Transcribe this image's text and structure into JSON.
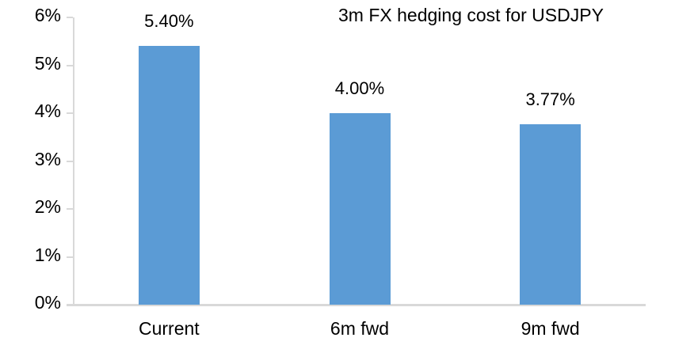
{
  "chart_data": {
    "type": "bar",
    "title": "3m FX hedging cost for USDJPY",
    "categories": [
      "Current",
      "6m fwd",
      "9m fwd"
    ],
    "values": [
      5.4,
      4.0,
      3.77
    ],
    "value_labels": [
      "5.40%",
      "4.00%",
      "3.77%"
    ],
    "xlabel": "",
    "ylabel": "",
    "y_axis": {
      "tick_labels": [
        "0%",
        "1%",
        "2%",
        "3%",
        "4%",
        "5%",
        "6%"
      ],
      "tick_values": [
        0,
        1,
        2,
        3,
        4,
        5,
        6
      ],
      "min": 0,
      "max": 6,
      "unit": "percent"
    },
    "grid": false,
    "legend": "none",
    "data_label_position": "outside-end",
    "colors": {
      "bar": "#5B9BD5",
      "axis": "#D9D9D9",
      "text": "#000000",
      "background": "#FFFFFF"
    }
  }
}
